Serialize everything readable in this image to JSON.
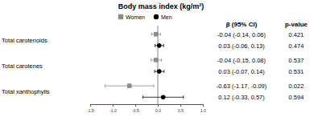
{
  "chart_data": {
    "type": "scatter",
    "title": "Body mass index (kg/m²)",
    "categories": [
      "Total carotenoids",
      "Total carotenes",
      "Total xanthophylls"
    ],
    "ci_header": "β (95% CI)",
    "p_header": "p-value",
    "series": [
      {
        "name": "Women",
        "color": "#8c8c8c",
        "marker": "square",
        "values": [
          -0.04,
          -0.04,
          -0.63
        ],
        "ci_low": [
          -0.14,
          -0.15,
          -1.17
        ],
        "ci_high": [
          0.06,
          0.08,
          -0.09
        ],
        "value_labels": [
          "-0.04 (-0.14, 0.06)",
          "-0.04 (-0.15, 0.08)",
          "-0.63 (-1.17, -0.09)"
        ],
        "p_values": [
          0.421,
          0.537,
          0.022
        ]
      },
      {
        "name": "Men",
        "color": "#000000",
        "marker": "circle",
        "values": [
          0.03,
          0.03,
          0.12
        ],
        "ci_low": [
          -0.06,
          -0.07,
          -0.33
        ],
        "ci_high": [
          0.13,
          0.14,
          0.57
        ],
        "value_labels": [
          "0.03 (-0.06, 0.13)",
          "0.03 (-0.07, 0.14)",
          "0.12 (-0.33, 0.57)"
        ],
        "p_values": [
          0.474,
          0.531,
          0.594
        ]
      }
    ],
    "xlim": [
      -1.5,
      1.0
    ],
    "xticks": [
      -1.5,
      {
        "value": -1.0,
        "label": "-1.0"
      },
      -0.5,
      {
        "value": 0,
        "label": "0.0"
      },
      0.5,
      {
        "value": 1.0,
        "label": "1.0"
      }
    ],
    "grid": false,
    "legend": "top"
  }
}
